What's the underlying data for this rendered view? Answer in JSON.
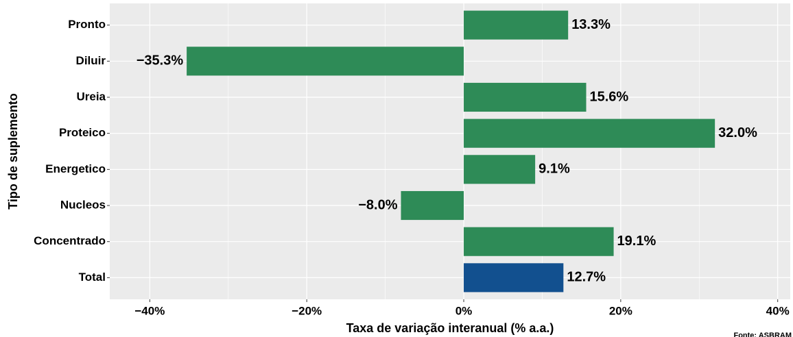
{
  "chart_data": {
    "type": "hbar",
    "categories": [
      "Pronto",
      "Diluir",
      "Ureia",
      "Proteico",
      "Energetico",
      "Nucleos",
      "Concentrado",
      "Total"
    ],
    "values": [
      13.3,
      -35.3,
      15.6,
      32.0,
      9.1,
      -8.0,
      19.1,
      12.7
    ],
    "value_labels": [
      "13.3%",
      "−35.3%",
      "15.6%",
      "32.0%",
      "9.1%",
      "−8.0%",
      "19.1%",
      "12.7%"
    ],
    "colors": [
      "#2e8b57",
      "#2e8b57",
      "#2e8b57",
      "#2e8b57",
      "#2e8b57",
      "#2e8b57",
      "#2e8b57",
      "#12508f"
    ],
    "xlim": [
      -45.1,
      41.6
    ],
    "xticks": [
      {
        "value": -40,
        "label": "−40%"
      },
      {
        "value": -20,
        "label": "−20%"
      },
      {
        "value": 0,
        "label": "0%"
      },
      {
        "value": 20,
        "label": "20%"
      },
      {
        "value": 40,
        "label": "40%"
      }
    ],
    "minor_xticks": [
      -30,
      -10,
      10,
      30
    ],
    "grid": true,
    "xlabel": "Taxa de variação interanual (% a.a.)",
    "ylabel": "Tipo de suplemento",
    "caption": "Fonte: ASBRAM"
  }
}
